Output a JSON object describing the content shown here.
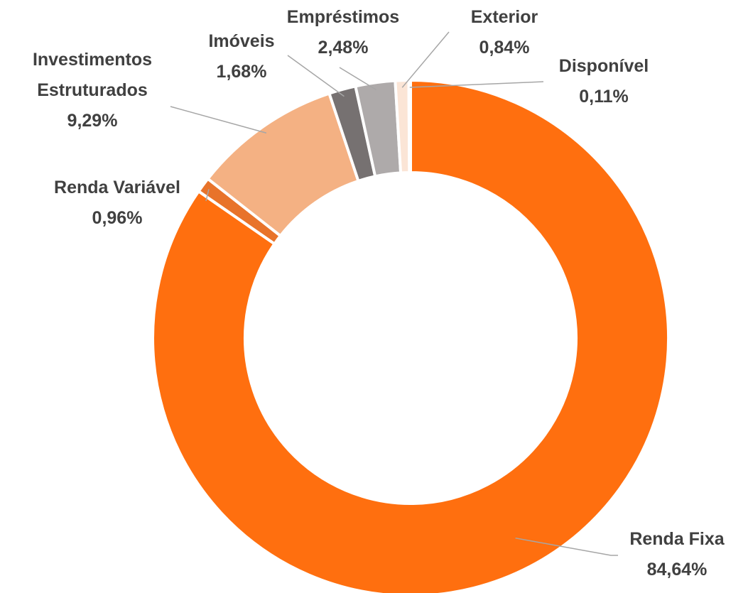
{
  "chart_data": {
    "type": "donut",
    "categories": [
      "Renda Fixa",
      "Renda Variável",
      "Investimentos Estruturados",
      "Imóveis",
      "Empréstimos",
      "Exterior",
      "Disponível"
    ],
    "values": [
      84.64,
      0.96,
      9.29,
      1.68,
      2.48,
      0.84,
      0.11
    ],
    "value_labels": [
      "84,64%",
      "0,96%",
      "9,29%",
      "1,68%",
      "2,48%",
      "0,84%",
      "0,11%"
    ],
    "colors": [
      "#FF6F0F",
      "#E8732A",
      "#F4B183",
      "#767171",
      "#AEAAAA",
      "#FBE5D6",
      "#FFF2EA"
    ]
  }
}
